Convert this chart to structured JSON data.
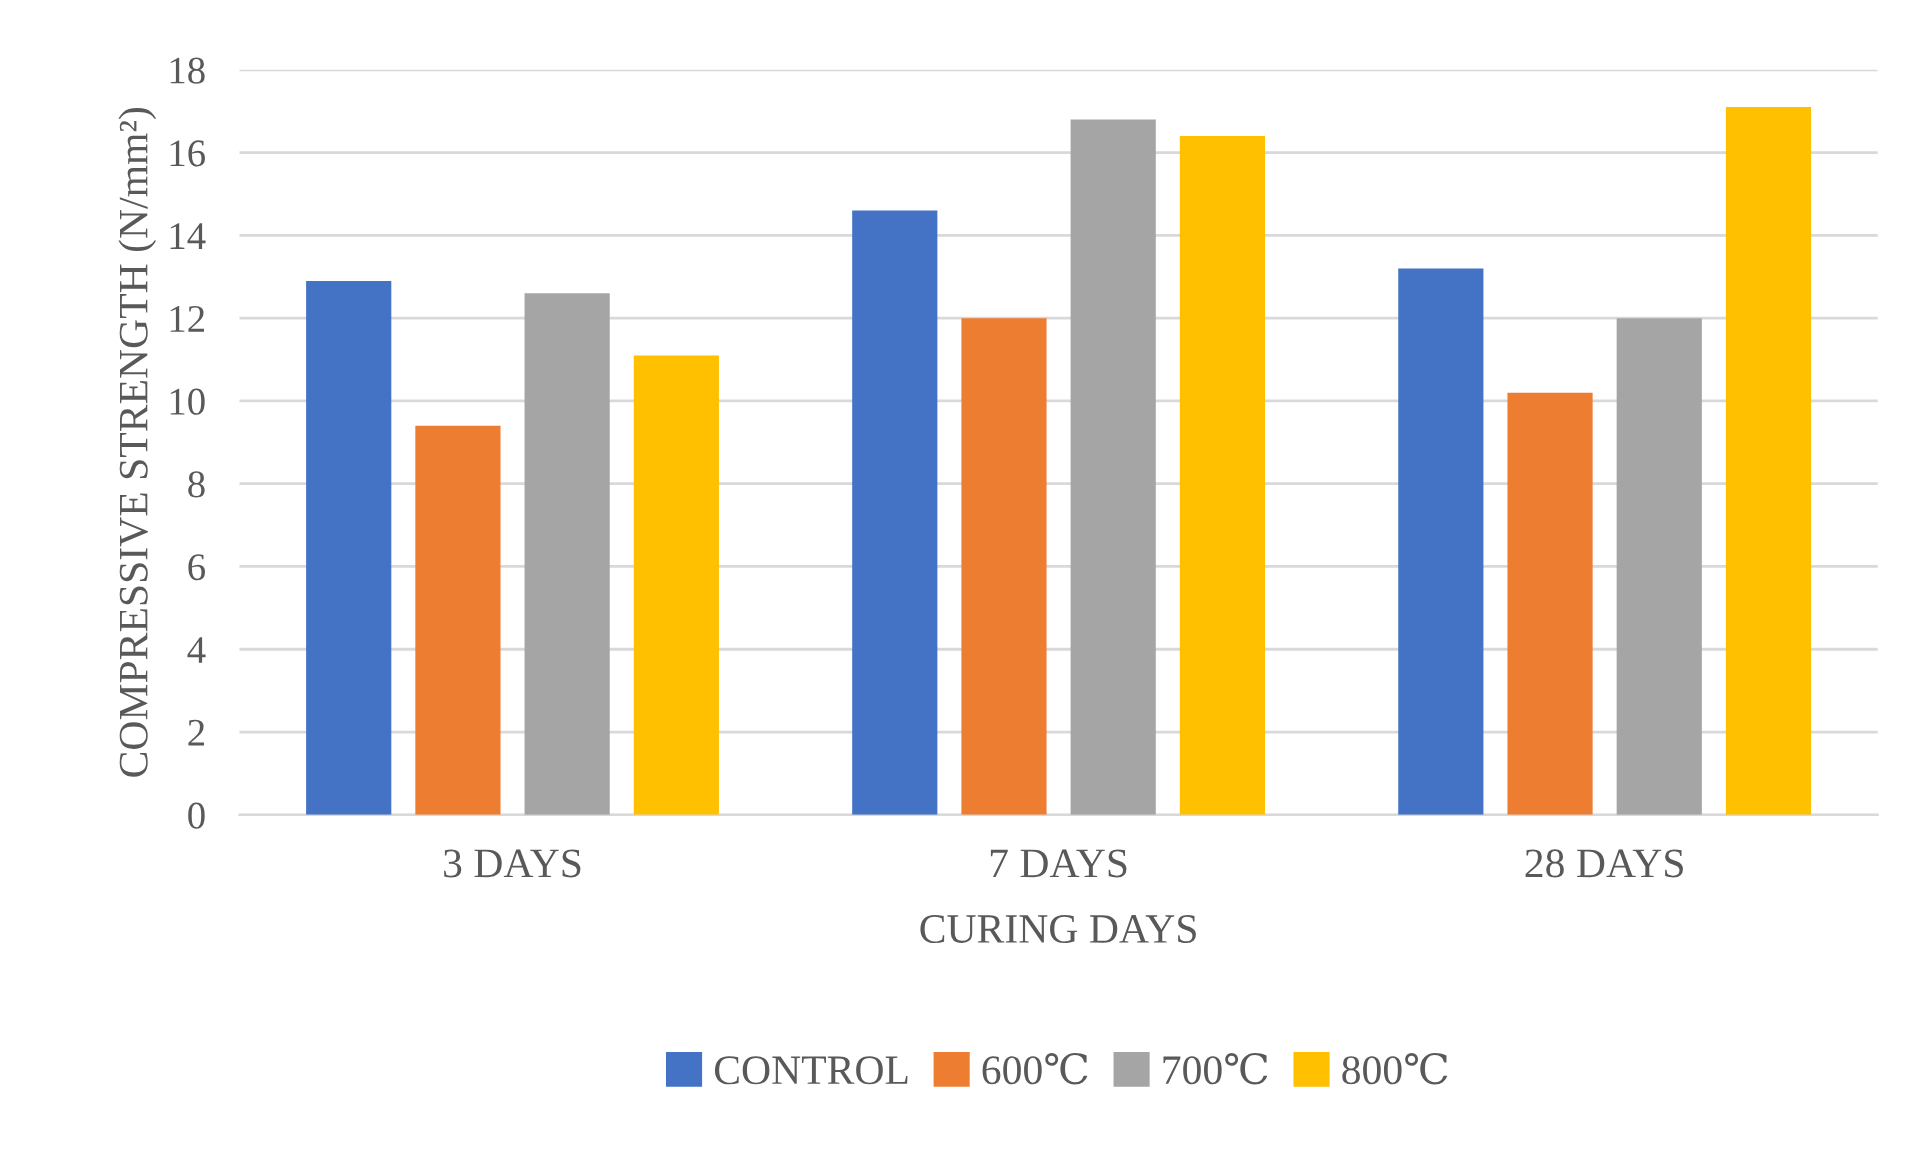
{
  "chart_data": {
    "type": "bar",
    "xlabel": "CURING DAYS",
    "ylabel": "COMPRESSIVE STRENGTH (N/mm²)",
    "categories": [
      "3 DAYS",
      "7 DAYS",
      "28 DAYS"
    ],
    "series": [
      {
        "name": "CONTROL",
        "color": "#4472c4",
        "values": [
          12.9,
          14.6,
          13.2
        ]
      },
      {
        "name": "600℃",
        "color": "#ed7d31",
        "values": [
          9.4,
          12.0,
          10.2
        ]
      },
      {
        "name": "700℃",
        "color": "#a5a5a5",
        "values": [
          12.6,
          16.8,
          12.0
        ]
      },
      {
        "name": "800℃",
        "color": "#ffc000",
        "values": [
          11.1,
          16.4,
          17.1
        ]
      }
    ],
    "ylim": [
      0,
      18
    ],
    "yticks": [
      0,
      2,
      4,
      6,
      8,
      10,
      12,
      14,
      16,
      18
    ],
    "grid": "y",
    "legend": "bottom"
  }
}
